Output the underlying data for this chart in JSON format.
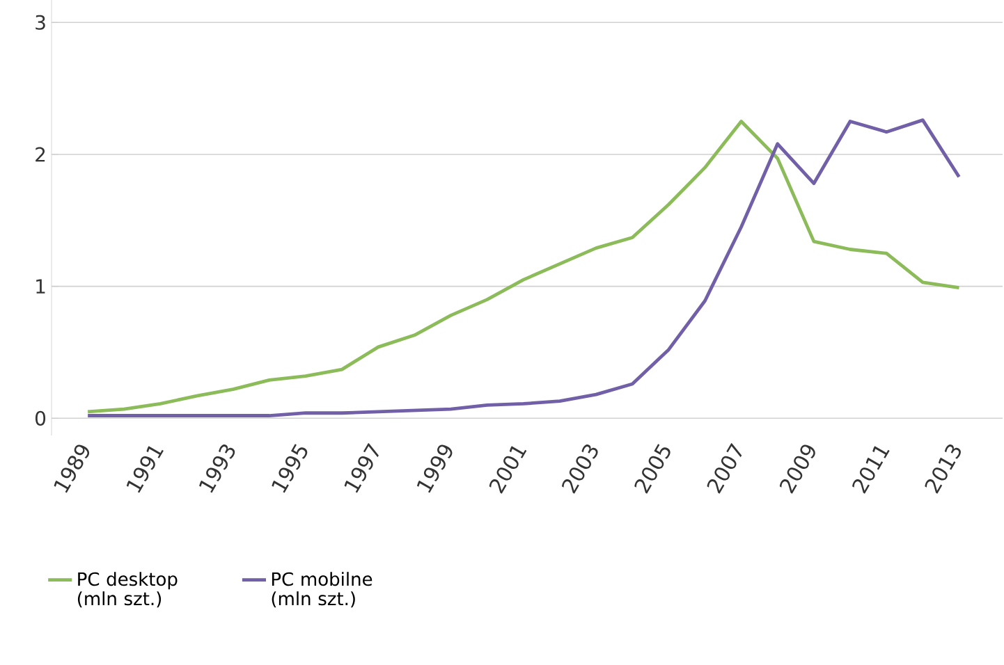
{
  "chart_data": {
    "type": "line",
    "x": [
      1989,
      1990,
      1991,
      1992,
      1993,
      1994,
      1995,
      1996,
      1997,
      1998,
      1999,
      2000,
      2001,
      2002,
      2003,
      2004,
      2005,
      2006,
      2007,
      2008,
      2009,
      2010,
      2011,
      2012,
      2013
    ],
    "series": [
      {
        "name": "PC desktop (mln szt.)",
        "color": "#8cbb5a",
        "values": [
          0.05,
          0.07,
          0.11,
          0.17,
          0.22,
          0.29,
          0.32,
          0.37,
          0.54,
          0.63,
          0.78,
          0.9,
          1.05,
          1.17,
          1.29,
          1.37,
          1.62,
          1.9,
          2.25,
          1.97,
          1.34,
          1.28,
          1.25,
          1.03,
          0.99
        ]
      },
      {
        "name": "PC mobilne (mln szt.)",
        "color": "#7160a8",
        "values": [
          0.02,
          0.02,
          0.02,
          0.02,
          0.02,
          0.02,
          0.04,
          0.04,
          0.05,
          0.06,
          0.07,
          0.1,
          0.11,
          0.13,
          0.18,
          0.26,
          0.52,
          0.89,
          1.45,
          2.08,
          1.78,
          2.25,
          2.17,
          2.26,
          1.83
        ]
      }
    ],
    "xlim": [
      1988,
      2014.2
    ],
    "xticks": [
      1989,
      1991,
      1993,
      1995,
      1997,
      1999,
      2001,
      2003,
      2005,
      2007,
      2009,
      2011,
      2013
    ],
    "ylim": [
      -0.13,
      3.17
    ],
    "yticks": [
      0,
      1,
      2,
      3
    ],
    "grid": "y",
    "legend": "bottom left",
    "marker": "none",
    "line_style": "solid"
  }
}
